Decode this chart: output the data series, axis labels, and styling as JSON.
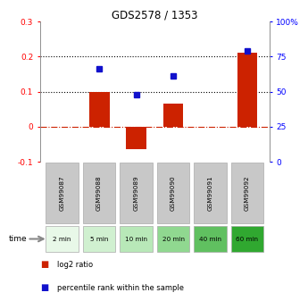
{
  "title": "GDS2578 / 1353",
  "samples": [
    "GSM99087",
    "GSM99088",
    "GSM99089",
    "GSM99090",
    "GSM99091",
    "GSM99092"
  ],
  "time_labels": [
    "2 min",
    "5 min",
    "10 min",
    "20 min",
    "40 min",
    "60 min"
  ],
  "log2_ratio": [
    0.0,
    0.1,
    -0.065,
    0.065,
    0.0,
    0.21
  ],
  "percentile_rank": [
    null,
    0.165,
    0.09,
    0.145,
    null,
    0.215
  ],
  "ylim_left": [
    -0.1,
    0.3
  ],
  "ylim_right": [
    0,
    100
  ],
  "yticks_left": [
    -0.1,
    0.0,
    0.1,
    0.2,
    0.3
  ],
  "ytick_labels_left": [
    "-0.1",
    "0",
    "0.1",
    "0.2",
    "0.3"
  ],
  "yticks_right": [
    0,
    25,
    50,
    75,
    100
  ],
  "ytick_labels_right": [
    "0",
    "25",
    "50",
    "75",
    "100%"
  ],
  "bar_color": "#cc2200",
  "dot_color": "#1111cc",
  "hline_dotted": [
    0.2,
    0.1
  ],
  "hline_dashed_color": "#cc2200",
  "time_bg_colors": [
    "#e8f8e8",
    "#d0f0d0",
    "#b8e8b8",
    "#90d890",
    "#60c060",
    "#30a830"
  ],
  "sample_bg_color": "#c8c8c8",
  "sample_border_color": "#aaaaaa",
  "time_border_color": "#aaaaaa",
  "legend_items": [
    "log2 ratio",
    "percentile rank within the sample"
  ],
  "bar_width": 0.55
}
